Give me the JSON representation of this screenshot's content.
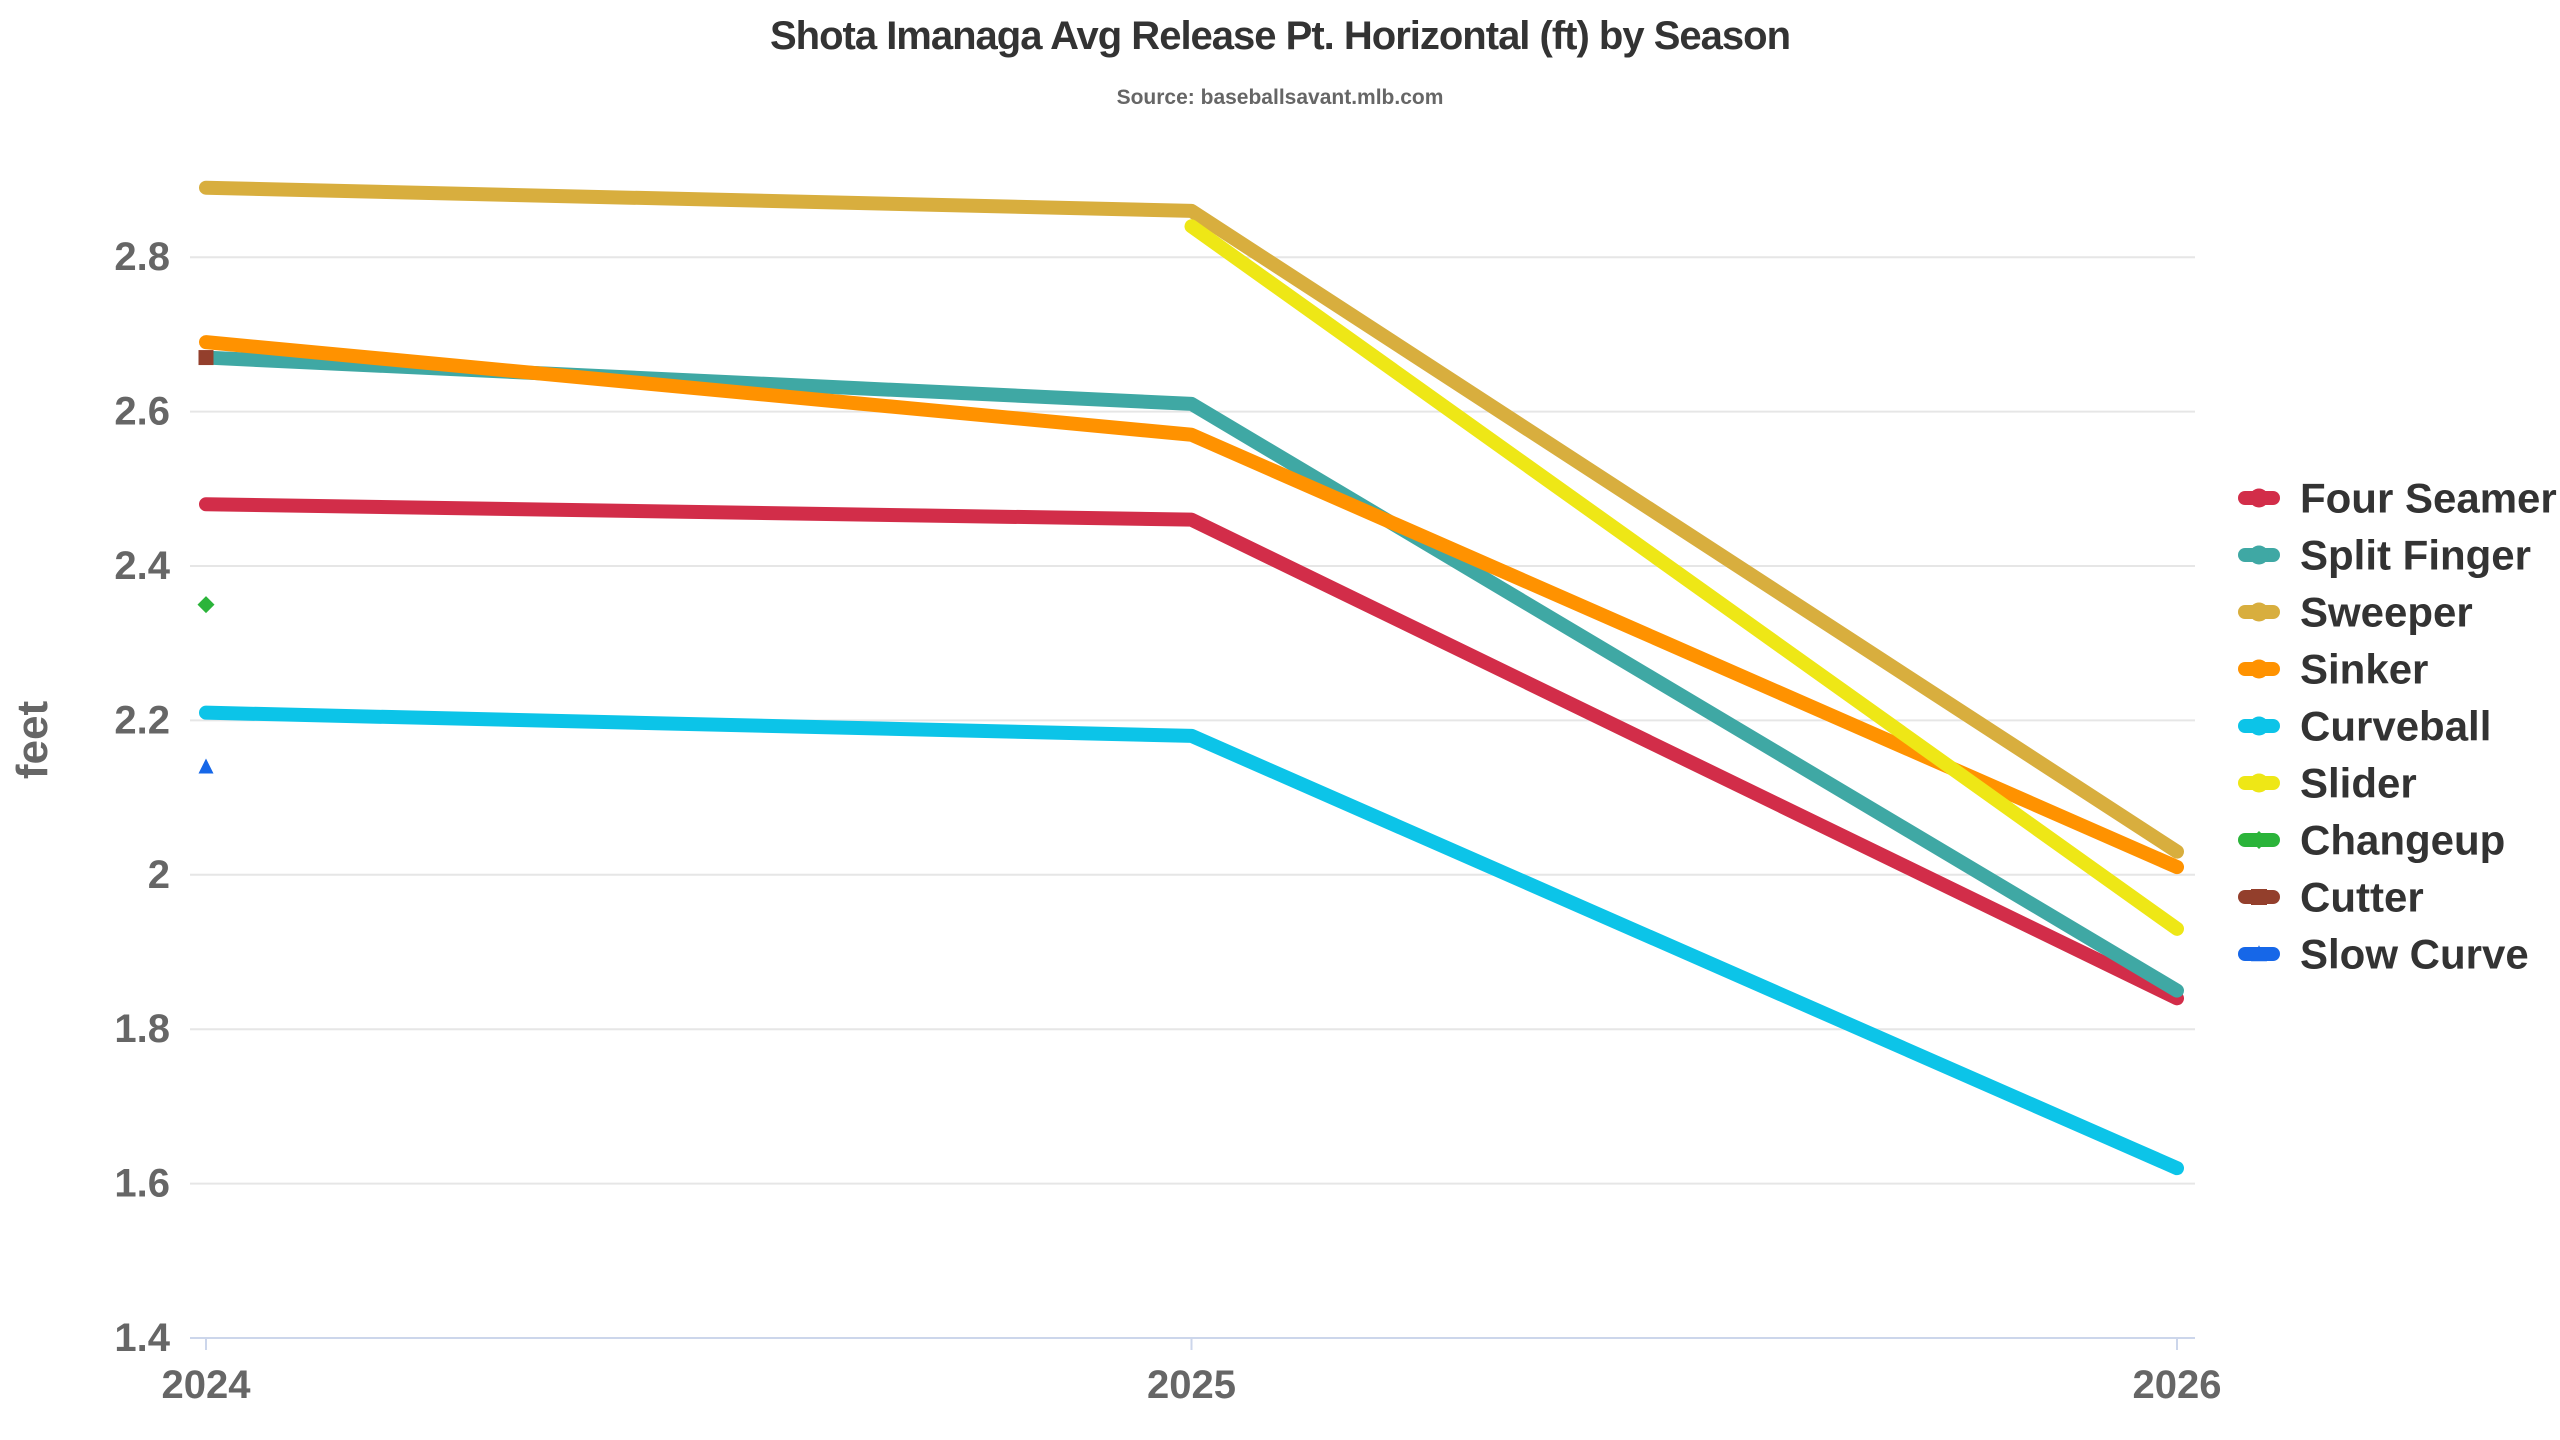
{
  "title": "Shota Imanaga Avg Release Pt. Horizontal (ft) by Season",
  "subtitle": "Source: baseballsavant.mlb.com",
  "chart_data": {
    "type": "line",
    "x": [
      2024,
      2025,
      2026
    ],
    "xtick_labels": [
      "2024",
      "2025",
      "2026"
    ],
    "xlabel": "",
    "ylabel": "feet",
    "ylim": [
      1.4,
      2.92
    ],
    "yticks": [
      1.4,
      1.6,
      1.8,
      2.0,
      2.2,
      2.4,
      2.6,
      2.8
    ],
    "ytick_labels": [
      "1.4",
      "1.6",
      "1.8",
      "2",
      "2.2",
      "2.4",
      "2.6",
      "2.8"
    ],
    "grid": true,
    "legend_position": "right",
    "colors": {
      "grid_line": "#E6E6E6",
      "axis_line": "#CCD6EB",
      "tick_text": "#666666",
      "title_text": "#333333",
      "legend_text": "#333333"
    },
    "series": [
      {
        "name": "Four Seamer",
        "color": "#D22D49",
        "marker": "circle",
        "values": [
          2.48,
          2.46,
          1.84
        ]
      },
      {
        "name": "Split Finger",
        "color": "#3FA8A4",
        "marker": "circle",
        "values": [
          2.67,
          2.61,
          1.85
        ]
      },
      {
        "name": "Sweeper",
        "color": "#D8AE3E",
        "marker": "circle",
        "values": [
          2.89,
          2.86,
          2.03
        ]
      },
      {
        "name": "Sinker",
        "color": "#FF9200",
        "marker": "circle",
        "values": [
          2.69,
          2.57,
          2.01
        ]
      },
      {
        "name": "Curveball",
        "color": "#0CC4E8",
        "marker": "circle",
        "values": [
          2.21,
          2.18,
          1.62
        ]
      },
      {
        "name": "Slider",
        "color": "#EEE716",
        "marker": "circle",
        "values": [
          null,
          2.84,
          1.93
        ]
      },
      {
        "name": "Changeup",
        "color": "#2BB43A",
        "marker": "diamond",
        "values": [
          2.35,
          null,
          null
        ]
      },
      {
        "name": "Cutter",
        "color": "#933F2C",
        "marker": "square",
        "values": [
          2.67,
          null,
          null
        ]
      },
      {
        "name": "Slow Curve",
        "color": "#1667E8",
        "marker": "triangle",
        "values": [
          2.14,
          null,
          null
        ]
      }
    ]
  }
}
